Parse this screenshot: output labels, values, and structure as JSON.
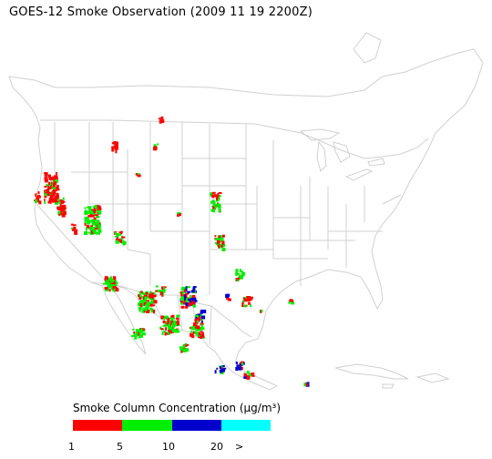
{
  "title": "GOES-12 Smoke Observation (2009 11 19  2200Z)",
  "legend": {
    "title": "Smoke Column Concentration (µg/m³)",
    "bins": [
      {
        "color": "#ff0000"
      },
      {
        "color": "#00ee00"
      },
      {
        "color": "#0000cc"
      },
      {
        "color": "#00ffff"
      }
    ],
    "ticks": [
      "1",
      "5",
      "10",
      "20",
      ">"
    ]
  },
  "map": {
    "outline_color": "#d0d0d0",
    "smoke_regions": [
      {
        "area": "Northern California",
        "level": 1
      },
      {
        "area": "Idaho / Montana",
        "level": 1
      },
      {
        "area": "Nevada / Utah",
        "level": 2
      },
      {
        "area": "Arizona",
        "level": 2
      },
      {
        "area": "New Mexico",
        "level": 3
      },
      {
        "area": "Kansas / Oklahoma",
        "level": 2
      },
      {
        "area": "Sonora / Chihuahua",
        "level": 2
      },
      {
        "area": "Gulf of Mexico coast",
        "level": 1
      },
      {
        "area": "Southern Mexico",
        "level": 3
      }
    ]
  }
}
